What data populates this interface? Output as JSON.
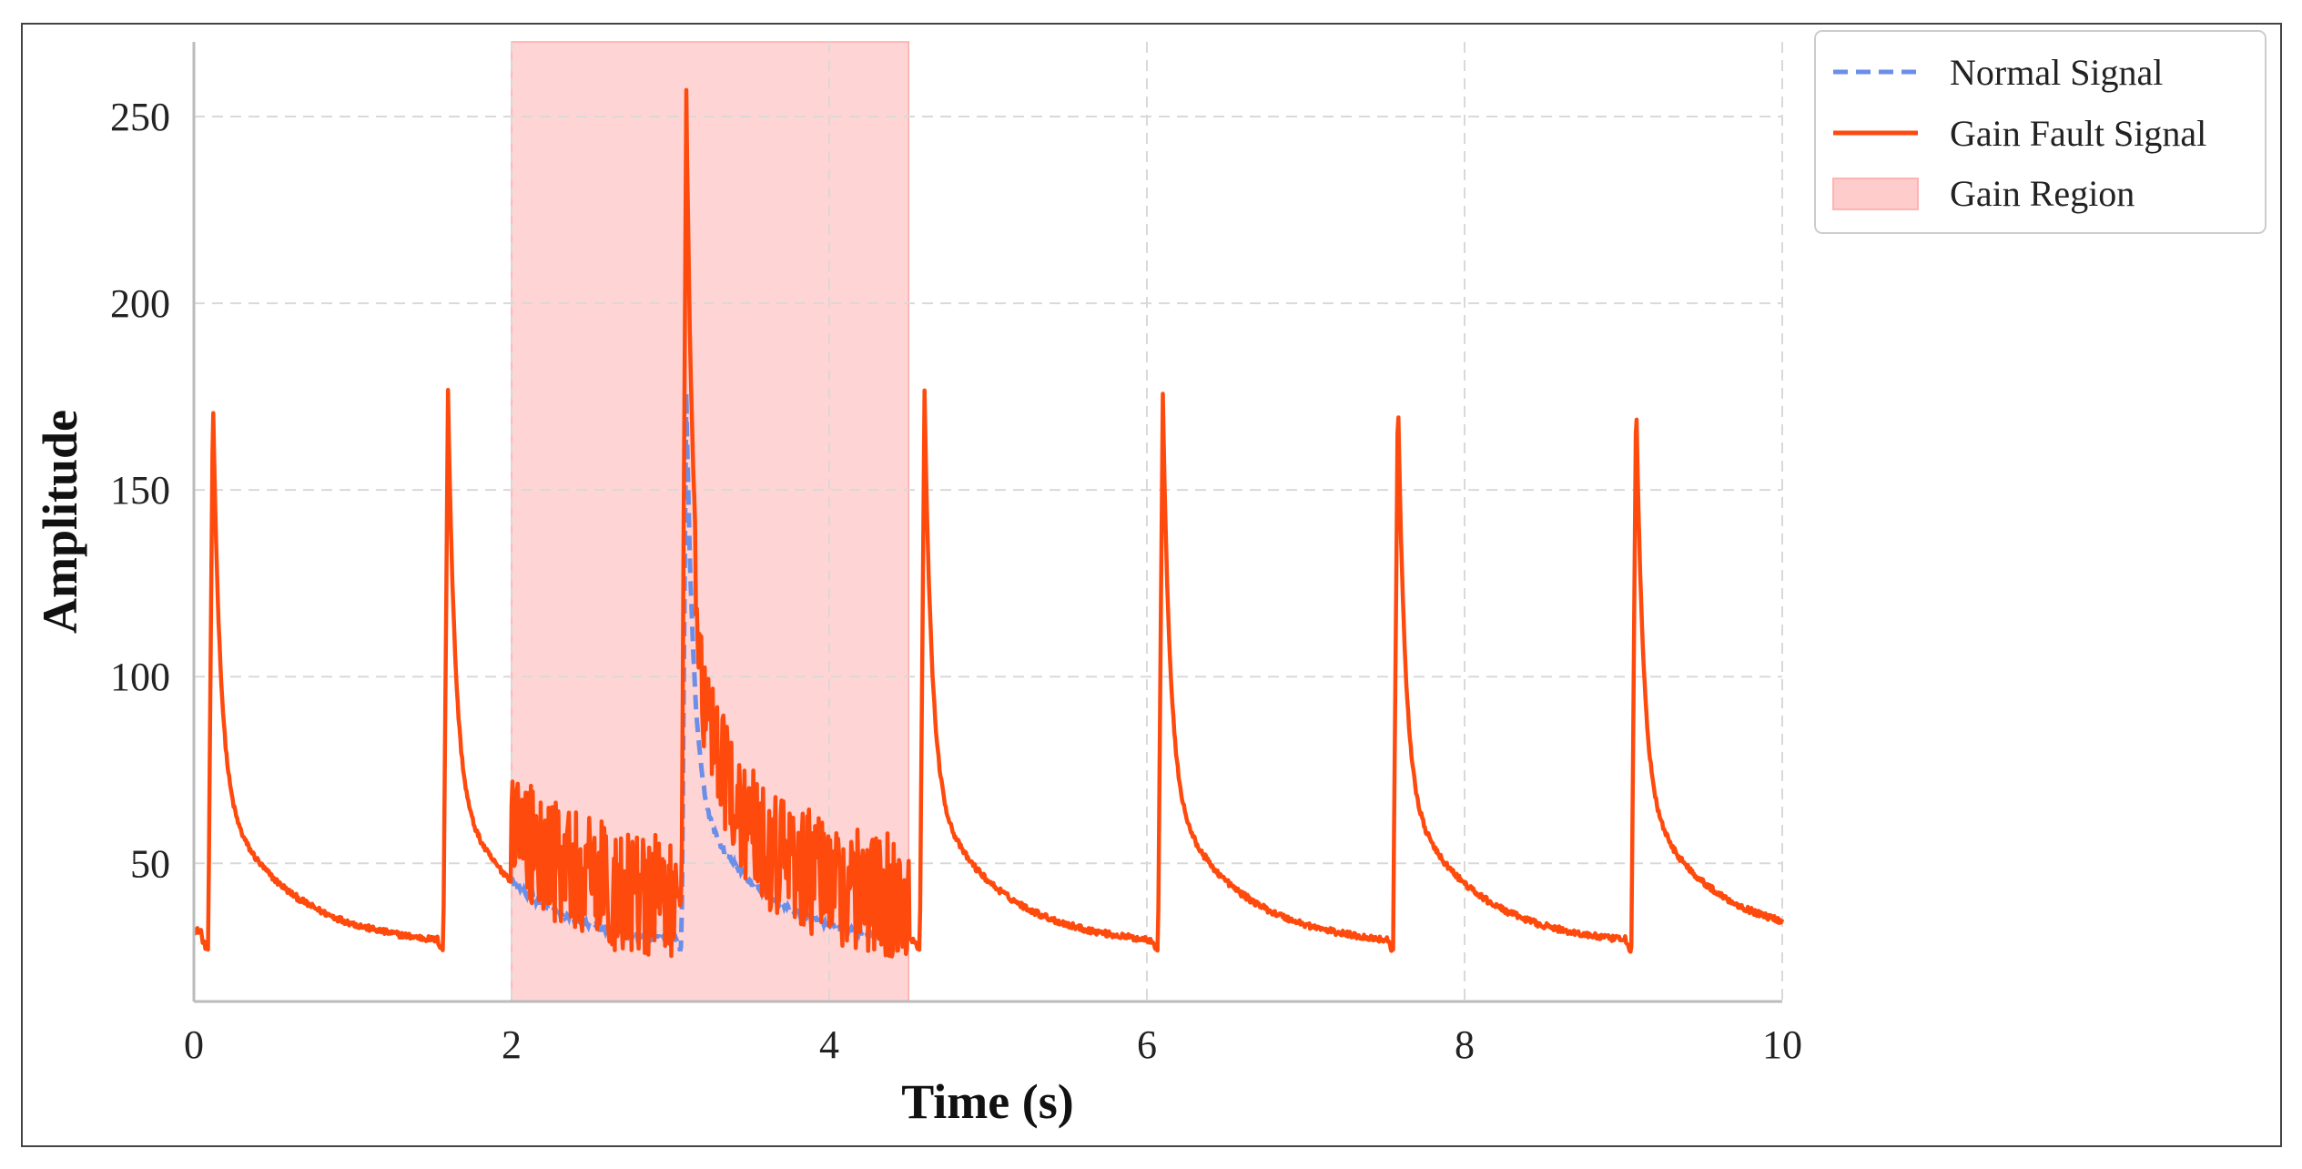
{
  "chart_data": {
    "type": "line",
    "title": "",
    "xlabel": "Time (s)",
    "ylabel": "Amplitude",
    "xlim": [
      0,
      10
    ],
    "ylim": [
      13,
      270
    ],
    "xticks": [
      0,
      2,
      4,
      6,
      8,
      10
    ],
    "yticks": [
      50,
      100,
      150,
      200,
      250
    ],
    "grid": true,
    "legend_position": "top-right",
    "series": [
      {
        "name": "Normal Signal",
        "style": "dashed",
        "color": "#6b8ee8",
        "beats": [
          {
            "t": 0.12,
            "peak": 176
          },
          {
            "t": 1.6,
            "peak": 177
          },
          {
            "t": 3.1,
            "peak": 176
          },
          {
            "t": 4.6,
            "peak": 177
          },
          {
            "t": 6.1,
            "peak": 176
          },
          {
            "t": 7.58,
            "peak": 177
          },
          {
            "t": 9.08,
            "peak": 176
          }
        ],
        "baseline": 30,
        "trough": 27
      },
      {
        "name": "Gain Fault Signal",
        "style": "solid",
        "color": "#ff4a0d",
        "beats": [
          {
            "t": 0.12,
            "peak": 176
          },
          {
            "t": 1.6,
            "peak": 177
          },
          {
            "t": 3.1,
            "peak": 257
          },
          {
            "t": 4.6,
            "peak": 177
          },
          {
            "t": 6.1,
            "peak": 176
          },
          {
            "t": 7.58,
            "peak": 177
          },
          {
            "t": 9.08,
            "peak": 176
          }
        ],
        "baseline": 30,
        "trough": 27
      }
    ],
    "regions": [
      {
        "name": "Gain Region",
        "x_start": 2.0,
        "x_end": 4.5,
        "color": "#ffcccc"
      }
    ],
    "legend": [
      "Normal Signal",
      "Gain Fault Signal",
      "Gain Region"
    ]
  }
}
